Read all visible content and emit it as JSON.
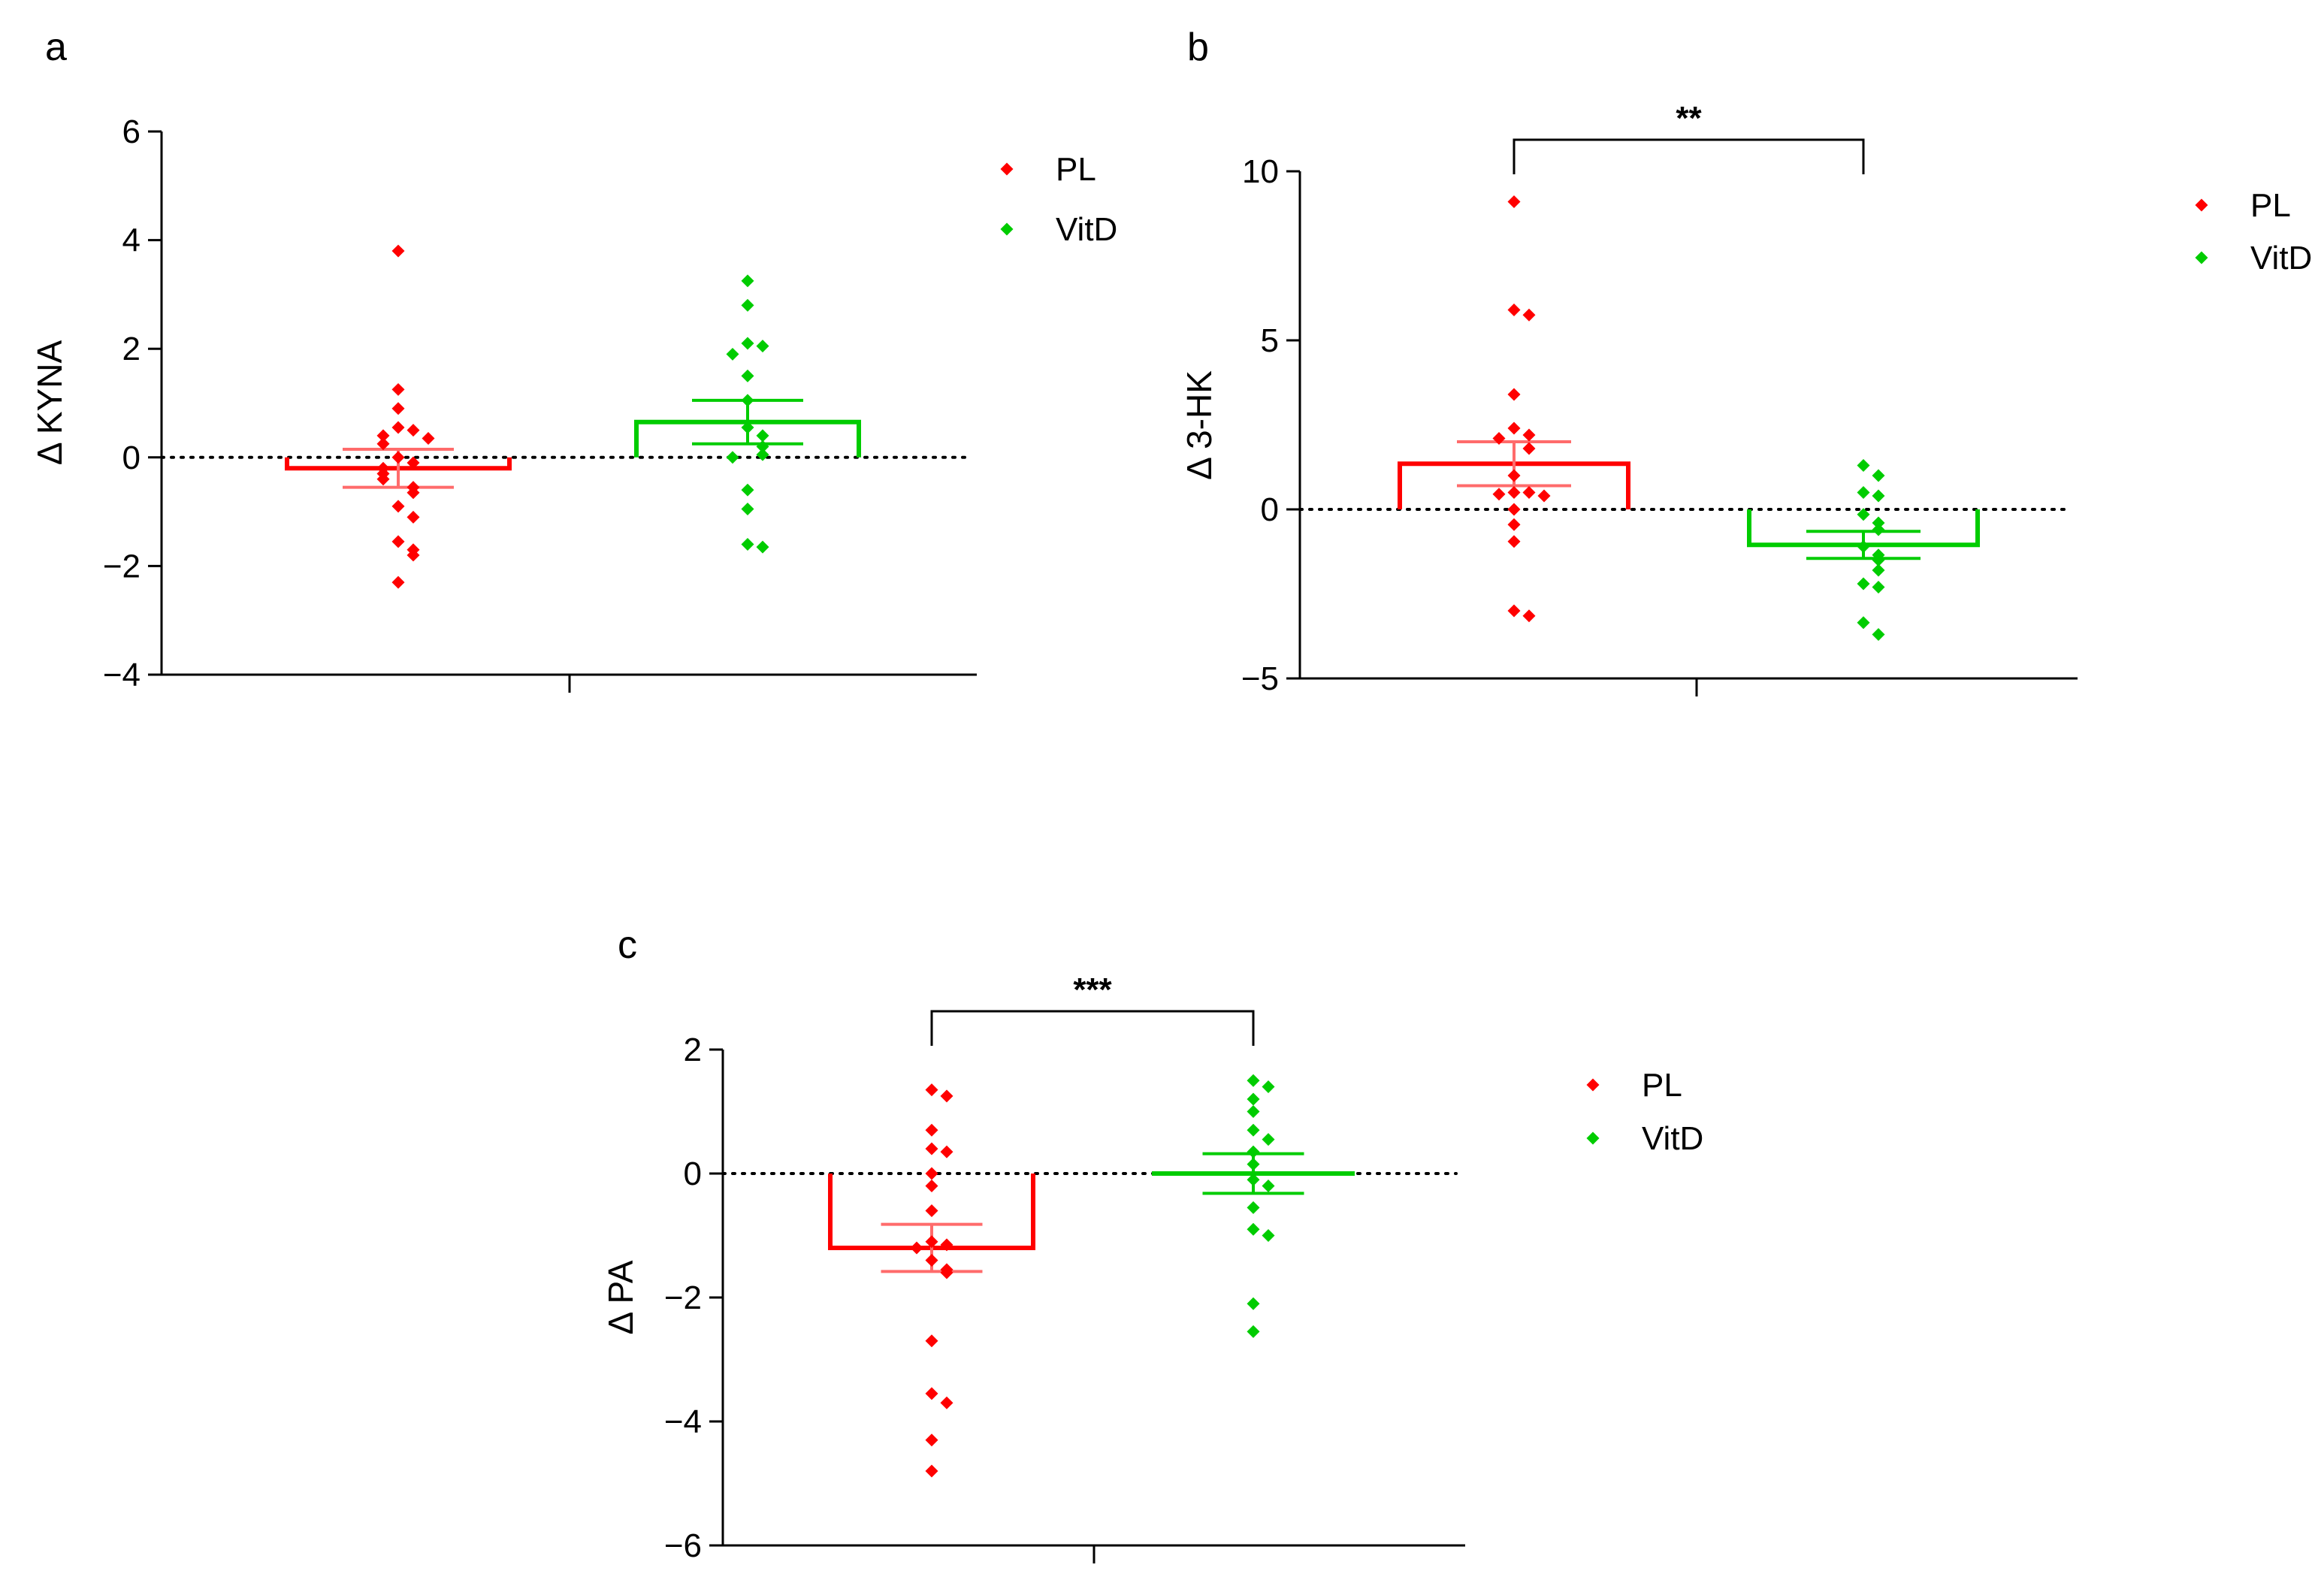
{
  "chart_data": [
    {
      "panel": "a",
      "type": "bar",
      "title": "",
      "ylabel": "Δ KYNA",
      "xlabel": "",
      "ylim": [
        -4,
        6
      ],
      "yticks": [
        -4,
        -2,
        0,
        2,
        4,
        6
      ],
      "ytick_labels": [
        "−4",
        "−2",
        "0",
        "2",
        "4",
        "6"
      ],
      "legend": [
        "PL",
        "VitD"
      ],
      "legend_position": "top-right",
      "significance": null,
      "series": [
        {
          "name": "PL",
          "color": "#ff0000",
          "mean": -0.2,
          "sem": 0.35,
          "points": [
            3.8,
            1.25,
            0.9,
            0.55,
            0.5,
            0.4,
            0.35,
            0.25,
            0.0,
            -0.1,
            -0.2,
            -0.3,
            -0.4,
            -0.55,
            -0.65,
            -0.9,
            -1.1,
            -1.55,
            -1.7,
            -1.8,
            -2.3
          ]
        },
        {
          "name": "VitD",
          "color": "#00cc00",
          "mean": 0.65,
          "sem": 0.4,
          "points": [
            3.25,
            2.8,
            2.1,
            2.05,
            1.9,
            1.5,
            1.05,
            0.55,
            0.4,
            0.2,
            0.05,
            0.0,
            -0.6,
            -0.95,
            -1.6,
            -1.65
          ]
        }
      ]
    },
    {
      "panel": "b",
      "type": "bar",
      "title": "",
      "ylabel": "Δ 3-HK",
      "xlabel": "",
      "ylim": [
        -5,
        10
      ],
      "yticks": [
        -5,
        0,
        5,
        10
      ],
      "ytick_labels": [
        "−5",
        "0",
        "5",
        "10"
      ],
      "legend": [
        "PL",
        "VitD"
      ],
      "legend_position": "top-right",
      "significance": "**",
      "series": [
        {
          "name": "PL",
          "color": "#ff0000",
          "mean": 1.35,
          "sem": 0.65,
          "points": [
            9.1,
            5.9,
            5.75,
            3.4,
            2.4,
            2.2,
            2.1,
            1.8,
            1.0,
            0.5,
            0.5,
            0.45,
            0.4,
            0.0,
            -0.45,
            -0.95,
            -3.0,
            -3.15
          ]
        },
        {
          "name": "VitD",
          "color": "#00cc00",
          "mean": -1.05,
          "sem": 0.4,
          "points": [
            1.3,
            1.0,
            0.5,
            0.4,
            -0.15,
            -0.4,
            -0.6,
            -1.1,
            -1.35,
            -1.5,
            -1.8,
            -2.2,
            -2.3,
            -3.35,
            -3.7
          ]
        }
      ]
    },
    {
      "panel": "c",
      "type": "bar",
      "title": "",
      "ylabel": "Δ PA",
      "xlabel": "",
      "ylim": [
        -6,
        2
      ],
      "yticks": [
        -6,
        -4,
        -2,
        0,
        2
      ],
      "ytick_labels": [
        "−6",
        "−4",
        "−2",
        "0",
        "2"
      ],
      "legend": [
        "PL",
        "VitD"
      ],
      "legend_position": "top-right",
      "significance": "***",
      "series": [
        {
          "name": "PL",
          "color": "#ff0000",
          "mean": -1.2,
          "sem": 0.38,
          "points": [
            1.35,
            1.25,
            0.7,
            0.4,
            0.35,
            0.0,
            -0.2,
            -0.6,
            -1.1,
            -1.15,
            -1.2,
            -1.4,
            -1.55,
            -1.6,
            -2.7,
            -3.55,
            -3.7,
            -4.3,
            -4.8
          ]
        },
        {
          "name": "VitD",
          "color": "#00cc00",
          "mean": 0.0,
          "sem": 0.32,
          "points": [
            1.5,
            1.4,
            1.2,
            1.0,
            0.7,
            0.55,
            0.35,
            0.15,
            -0.1,
            -0.2,
            -0.55,
            -0.9,
            -1.0,
            -2.1,
            -2.55
          ]
        }
      ]
    }
  ]
}
